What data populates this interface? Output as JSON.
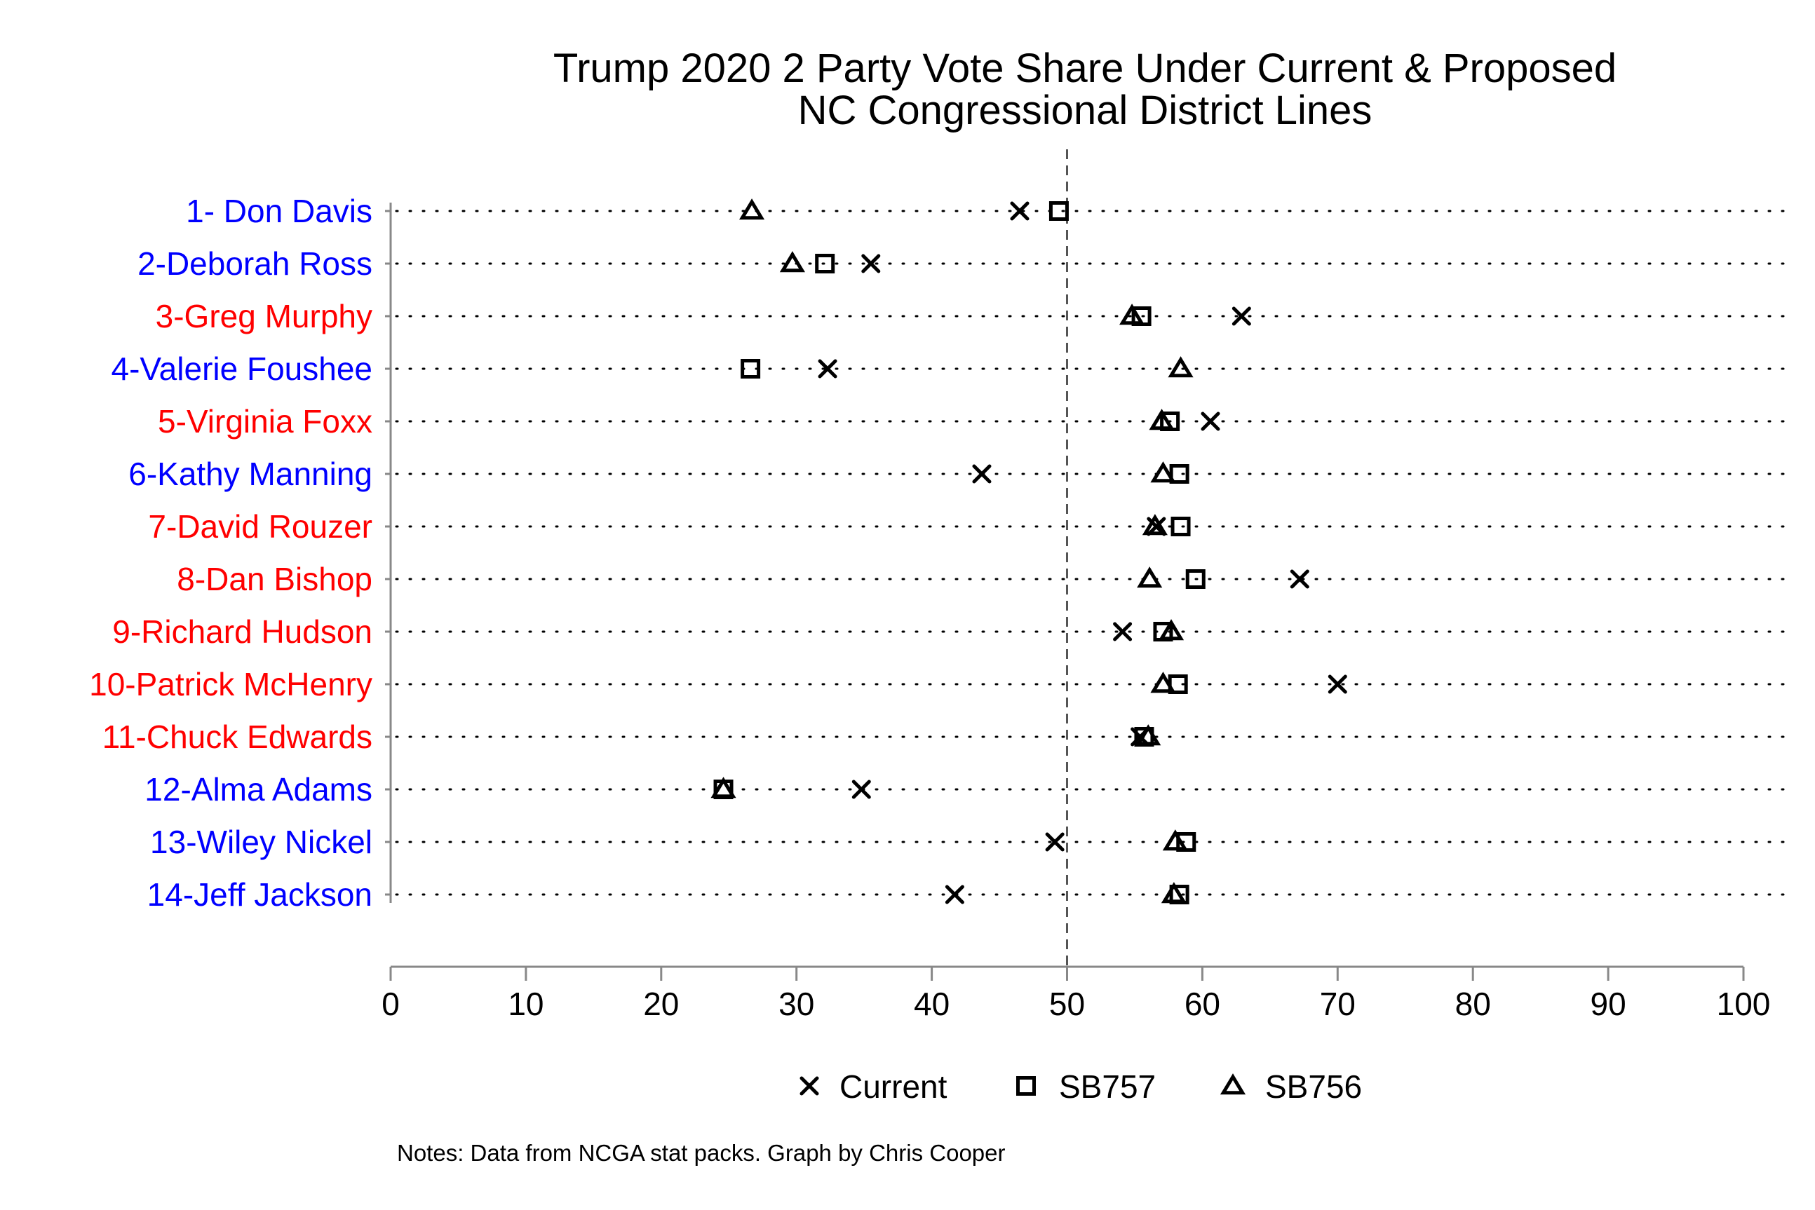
{
  "chart_data": {
    "type": "scatter",
    "title": "Trump 2020 2 Party Vote Share Under Current & Proposed",
    "subtitle": "NC Congressional District Lines",
    "xlabel": "",
    "ylabel": "",
    "xlim": [
      0,
      100
    ],
    "xticks": [
      "0",
      "10",
      "20",
      "30",
      "40",
      "50",
      "60",
      "70",
      "80",
      "90",
      "100"
    ],
    "reference_line": 50,
    "grid": "dotted horizontal lines per category",
    "legend_position": "bottom",
    "categories": [
      {
        "label": "1- Don Davis",
        "color": "#0000ff"
      },
      {
        "label": "2-Deborah Ross",
        "color": "#0000ff"
      },
      {
        "label": "3-Greg Murphy",
        "color": "#ff0000"
      },
      {
        "label": "4-Valerie Foushee",
        "color": "#0000ff"
      },
      {
        "label": "5-Virginia Foxx",
        "color": "#ff0000"
      },
      {
        "label": "6-Kathy Manning",
        "color": "#0000ff"
      },
      {
        "label": "7-David Rouzer",
        "color": "#ff0000"
      },
      {
        "label": "8-Dan Bishop",
        "color": "#ff0000"
      },
      {
        "label": "9-Richard Hudson",
        "color": "#ff0000"
      },
      {
        "label": "10-Patrick McHenry",
        "color": "#ff0000"
      },
      {
        "label": "11-Chuck Edwards",
        "color": "#ff0000"
      },
      {
        "label": "12-Alma Adams",
        "color": "#0000ff"
      },
      {
        "label": "13-Wiley Nickel",
        "color": "#0000ff"
      },
      {
        "label": "14-Jeff Jackson",
        "color": "#0000ff"
      }
    ],
    "series": [
      {
        "name": "Current",
        "marker": "x",
        "values": [
          46.5,
          35.5,
          62.9,
          32.3,
          60.6,
          43.7,
          56.6,
          67.2,
          54.1,
          70.0,
          55.4,
          34.8,
          49.1,
          41.7
        ]
      },
      {
        "name": "SB757",
        "marker": "square",
        "values": [
          49.4,
          32.1,
          55.5,
          26.6,
          57.6,
          58.3,
          58.4,
          59.5,
          57.1,
          58.2,
          55.7,
          24.6,
          58.8,
          58.3
        ]
      },
      {
        "name": "SB756",
        "marker": "triangle",
        "values": [
          26.7,
          29.7,
          54.8,
          58.4,
          57.0,
          57.1,
          56.5,
          56.1,
          57.7,
          57.1,
          56.0,
          24.6,
          58.0,
          57.9
        ]
      }
    ]
  },
  "notes": "Notes: Data from NCGA stat packs. Graph by Chris Cooper"
}
